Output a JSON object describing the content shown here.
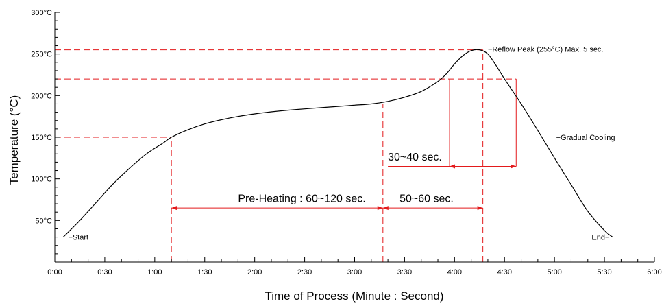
{
  "chart_data": {
    "type": "line",
    "xlabel": "Time of Process (Minute : Second)",
    "ylabel": "Temperature (°C)",
    "xlim": [
      0,
      360
    ],
    "ylim": [
      0,
      300
    ],
    "x_ticks": [
      {
        "value": 0,
        "label": "0:00"
      },
      {
        "value": 30,
        "label": "0:30"
      },
      {
        "value": 60,
        "label": "1:00"
      },
      {
        "value": 90,
        "label": "1:30"
      },
      {
        "value": 120,
        "label": "2:00"
      },
      {
        "value": 150,
        "label": "2:30"
      },
      {
        "value": 180,
        "label": "3:00"
      },
      {
        "value": 210,
        "label": "3:30"
      },
      {
        "value": 240,
        "label": "4:00"
      },
      {
        "value": 270,
        "label": "4:30"
      },
      {
        "value": 300,
        "label": "5:00"
      },
      {
        "value": 330,
        "label": "5:30"
      },
      {
        "value": 360,
        "label": "6:00"
      }
    ],
    "y_ticks": [
      {
        "value": 50,
        "label": "50°C"
      },
      {
        "value": 100,
        "label": "100°C"
      },
      {
        "value": 150,
        "label": "150°C"
      },
      {
        "value": 200,
        "label": "200°C"
      },
      {
        "value": 250,
        "label": "250°C"
      },
      {
        "value": 300,
        "label": "300°C"
      }
    ],
    "grid": false,
    "series": [
      {
        "color": "#000000",
        "x": [
          5,
          15,
          25,
          35,
          45,
          55,
          65,
          70,
          80,
          90,
          100,
          110,
          120,
          130,
          140,
          150,
          160,
          170,
          180,
          190,
          200,
          210,
          220,
          230,
          235,
          240,
          245,
          250,
          255,
          260,
          265,
          270,
          280,
          290,
          300,
          310,
          320,
          330,
          335
        ],
        "y": [
          30,
          50,
          72,
          94,
          113,
          130,
          143,
          150,
          159,
          166,
          171,
          175,
          178,
          180.5,
          182.5,
          184,
          185.5,
          187,
          188.5,
          190,
          193,
          198,
          205,
          217,
          226,
          238,
          248,
          254,
          255,
          250,
          236,
          220,
          190,
          158,
          125,
          93,
          61,
          38,
          30
        ]
      }
    ],
    "reference_color": "#e31a1c",
    "reference_lines": {
      "horizontal": [
        {
          "y": 255,
          "x_end": 257
        },
        {
          "y": 220,
          "x_end": 277
        },
        {
          "y": 190,
          "x_end": 197
        },
        {
          "y": 150,
          "x_end": 70
        }
      ],
      "vertical": [
        {
          "x": 70,
          "y_start": 0,
          "y_end": 150
        },
        {
          "x": 197,
          "y_start": 0,
          "y_end": 190
        },
        {
          "x": 257,
          "y_start": 0,
          "y_end": 255
        }
      ],
      "solid_vertical": [
        {
          "x": 237,
          "y_start": 115,
          "y_end": 220
        },
        {
          "x": 277,
          "y_start": 115,
          "y_end": 220
        }
      ]
    },
    "spans": [
      {
        "label": "Pre-Heating : 60~120 sec.",
        "x_start": 70,
        "x_end": 197,
        "y": 65,
        "label_x": 110,
        "label_y": 72
      },
      {
        "label": "50~60 sec.",
        "x_start": 197,
        "x_end": 257,
        "y": 65,
        "label_x": 207,
        "label_y": 72
      },
      {
        "label": "30~40 sec.",
        "x_start": 237,
        "x_end": 277,
        "y": 115,
        "label_x": 200,
        "label_y": 122
      }
    ],
    "annotations": [
      {
        "text": "−Start",
        "x": 8,
        "y": 30,
        "anchor": "start"
      },
      {
        "text": "End−",
        "x": 333,
        "y": 30,
        "anchor": "end"
      },
      {
        "text": "−Reflow Peak (255°C) Max. 5 sec.",
        "x": 260,
        "y": 256,
        "anchor": "start"
      },
      {
        "text": "−Gradual Cooling",
        "x": 301,
        "y": 150,
        "anchor": "start"
      }
    ]
  }
}
